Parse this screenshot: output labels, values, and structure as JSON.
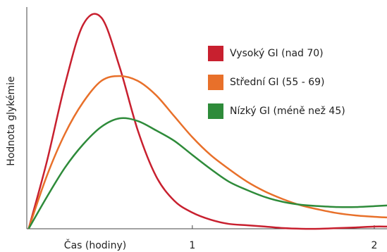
{
  "chart_data": {
    "type": "line",
    "x_label": "Čas (hodiny)",
    "y_label": "Hodnota glykémie",
    "x": [
      0.1,
      0.2,
      0.3,
      0.4,
      0.5,
      0.6,
      0.7,
      0.8,
      0.9,
      1.0,
      1.1,
      1.2,
      1.3,
      1.4,
      1.5,
      1.6,
      1.7,
      1.8,
      1.9,
      2.0,
      2.07
    ],
    "xlim": [
      0.09,
      2.07
    ],
    "xticks": [
      1,
      2
    ],
    "ylim": [
      0,
      100
    ],
    "legend": "upper right",
    "series": [
      {
        "name": "Vysoký GI (nad 70)",
        "color": "#c8202f",
        "values": [
          0,
          30.2,
          65.1,
          92.1,
          95.2,
          73.0,
          44.4,
          23.8,
          12.7,
          7.3,
          4.1,
          2.2,
          1.6,
          1.0,
          0.3,
          0,
          0,
          0.3,
          0.6,
          1.0,
          1.0
        ]
      },
      {
        "name": "Střední GI (55 - 69)",
        "color": "#e8702a",
        "values": [
          0,
          23.8,
          42.9,
          57.1,
          66.7,
          68.9,
          66.7,
          60.3,
          50.8,
          41.3,
          33.3,
          27.0,
          21.3,
          16.8,
          13.3,
          10.5,
          8.6,
          7.0,
          6.0,
          5.4,
          5.1
        ]
      },
      {
        "name": "Nízký GI (méně než 45)",
        "color": "#2e8b3a",
        "values": [
          0,
          14.3,
          27.6,
          38.1,
          46.0,
          49.8,
          48.6,
          44.4,
          39.7,
          33.3,
          27.0,
          21.3,
          17.5,
          14.3,
          12.1,
          10.8,
          10.2,
          9.8,
          9.8,
          10.2,
          10.5
        ]
      }
    ]
  }
}
